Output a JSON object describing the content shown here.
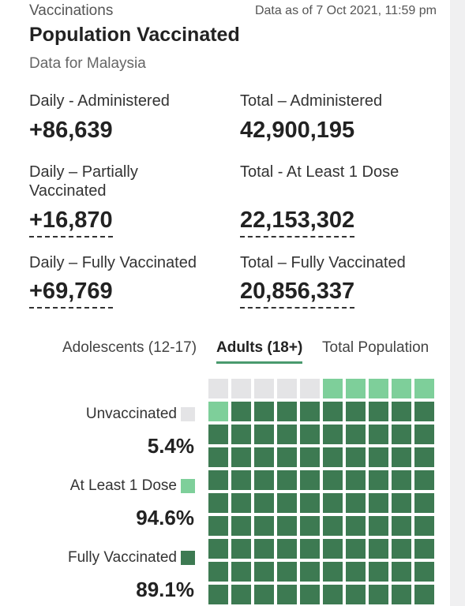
{
  "header": {
    "section": "Vaccinations",
    "as_of": "Data as of 7 Oct 2021, 11:59 pm",
    "title": "Population Vaccinated",
    "subtitle": "Data for Malaysia"
  },
  "stats": {
    "daily_administered": {
      "label": "Daily - Administered",
      "value": "+86,639"
    },
    "total_administered": {
      "label": "Total – Administered",
      "value": "42,900,195"
    },
    "daily_partial": {
      "label_line1": "Daily – Partially",
      "label_line2": "Vaccinated",
      "value": "+16,870"
    },
    "total_one_dose": {
      "label": "Total - At Least 1 Dose",
      "value": "22,153,302"
    },
    "daily_full": {
      "label": "Daily – Fully Vaccinated",
      "value": "+69,769"
    },
    "total_full": {
      "label": "Total – Fully Vaccinated",
      "value": "20,856,337"
    }
  },
  "tabs": [
    {
      "label": "Adolescents (12-17)",
      "active": false
    },
    {
      "label": "Adults (18+)",
      "active": true
    },
    {
      "label": "Total Population",
      "active": false
    }
  ],
  "legend": {
    "unvaccinated": {
      "label": "Unvaccinated",
      "pct": "5.4%",
      "color": "#e4e4e6"
    },
    "at_least_1": {
      "label": "At Least 1 Dose",
      "pct": "94.6%",
      "color": "#7ecf9a"
    },
    "fully": {
      "label": "Fully Vaccinated",
      "pct": "89.1%",
      "color": "#3d7a52"
    }
  },
  "waffle": {
    "total_cells": 100,
    "unvaccinated_pct": 5.4,
    "at_least_1_pct": 94.6,
    "fully_pct": 89.1
  }
}
